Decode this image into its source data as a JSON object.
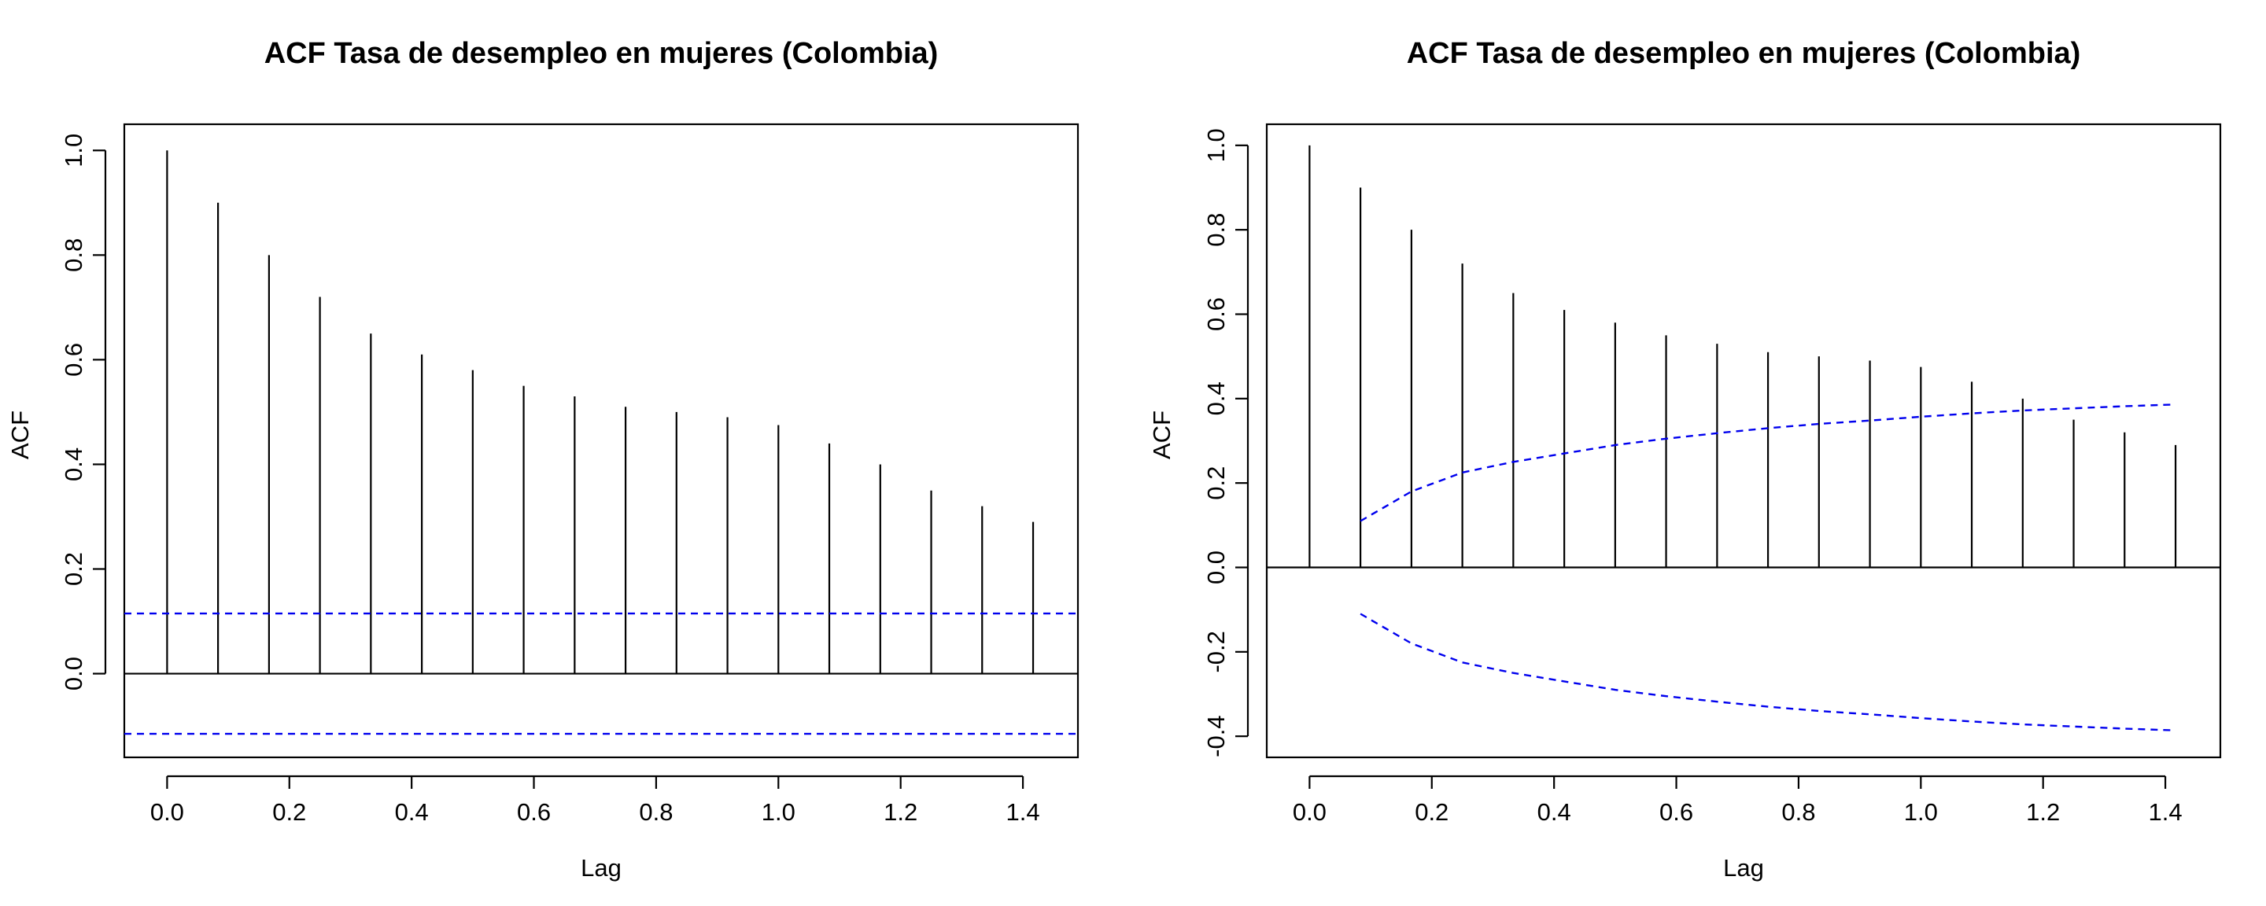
{
  "chart_data": [
    {
      "type": "bar",
      "title": "ACF Tasa de desempleo en mujeres (Colombia)",
      "xlabel": "Lag",
      "ylabel": "ACF",
      "xlim": [
        -0.07,
        1.49
      ],
      "ylim": [
        -0.16,
        1.05
      ],
      "xticks": [
        0.0,
        0.2,
        0.4,
        0.6,
        0.8,
        1.0,
        1.2,
        1.4
      ],
      "xtick_labels": [
        "0.0",
        "0.2",
        "0.4",
        "0.6",
        "0.8",
        "1.0",
        "1.2",
        "1.4"
      ],
      "yticks": [
        0.0,
        0.2,
        0.4,
        0.6,
        0.8,
        1.0
      ],
      "ytick_labels": [
        "0.0",
        "0.2",
        "0.4",
        "0.6",
        "0.8",
        "1.0"
      ],
      "lags": [
        0.0,
        0.0833,
        0.1667,
        0.25,
        0.3333,
        0.4167,
        0.5,
        0.5833,
        0.6667,
        0.75,
        0.8333,
        0.9167,
        1.0,
        1.0833,
        1.1667,
        1.25,
        1.3333,
        1.4167
      ],
      "values": [
        1.0,
        0.9,
        0.8,
        0.72,
        0.65,
        0.61,
        0.58,
        0.55,
        0.53,
        0.51,
        0.5,
        0.49,
        0.475,
        0.44,
        0.4,
        0.35,
        0.32,
        0.29
      ],
      "confidence_band": {
        "type": "constant",
        "upper": 0.115,
        "lower": -0.115,
        "color": "#0000ee"
      }
    },
    {
      "type": "bar",
      "title": "ACF Tasa de desempleo en mujeres (Colombia)",
      "xlabel": "Lag",
      "ylabel": "ACF",
      "xlim": [
        -0.07,
        1.49
      ],
      "ylim": [
        -0.45,
        1.05
      ],
      "xticks": [
        0.0,
        0.2,
        0.4,
        0.6,
        0.8,
        1.0,
        1.2,
        1.4
      ],
      "xtick_labels": [
        "0.0",
        "0.2",
        "0.4",
        "0.6",
        "0.8",
        "1.0",
        "1.2",
        "1.4"
      ],
      "yticks": [
        -0.4,
        -0.2,
        0.0,
        0.2,
        0.4,
        0.6,
        0.8,
        1.0
      ],
      "ytick_labels": [
        "-0.4",
        "-0.2",
        "0.0",
        "0.2",
        "0.4",
        "0.6",
        "0.8",
        "1.0"
      ],
      "lags": [
        0.0,
        0.0833,
        0.1667,
        0.25,
        0.3333,
        0.4167,
        0.5,
        0.5833,
        0.6667,
        0.75,
        0.8333,
        0.9167,
        1.0,
        1.0833,
        1.1667,
        1.25,
        1.3333,
        1.4167
      ],
      "values": [
        1.0,
        0.9,
        0.8,
        0.72,
        0.65,
        0.61,
        0.58,
        0.55,
        0.53,
        0.51,
        0.5,
        0.49,
        0.475,
        0.44,
        0.4,
        0.35,
        0.32,
        0.29
      ],
      "confidence_band": {
        "type": "varying",
        "lags": [
          0.0833,
          0.1667,
          0.25,
          0.3333,
          0.4167,
          0.5,
          0.5833,
          0.6667,
          0.75,
          0.8333,
          0.9167,
          1.0,
          1.0833,
          1.1667,
          1.25,
          1.3333,
          1.4167
        ],
        "upper": [
          0.11,
          0.18,
          0.225,
          0.25,
          0.27,
          0.29,
          0.305,
          0.318,
          0.33,
          0.34,
          0.348,
          0.357,
          0.365,
          0.372,
          0.377,
          0.382,
          0.386
        ],
        "lower": [
          -0.11,
          -0.18,
          -0.225,
          -0.25,
          -0.27,
          -0.29,
          -0.305,
          -0.318,
          -0.33,
          -0.34,
          -0.348,
          -0.357,
          -0.365,
          -0.372,
          -0.377,
          -0.382,
          -0.386
        ],
        "color": "#0000ee"
      }
    }
  ]
}
